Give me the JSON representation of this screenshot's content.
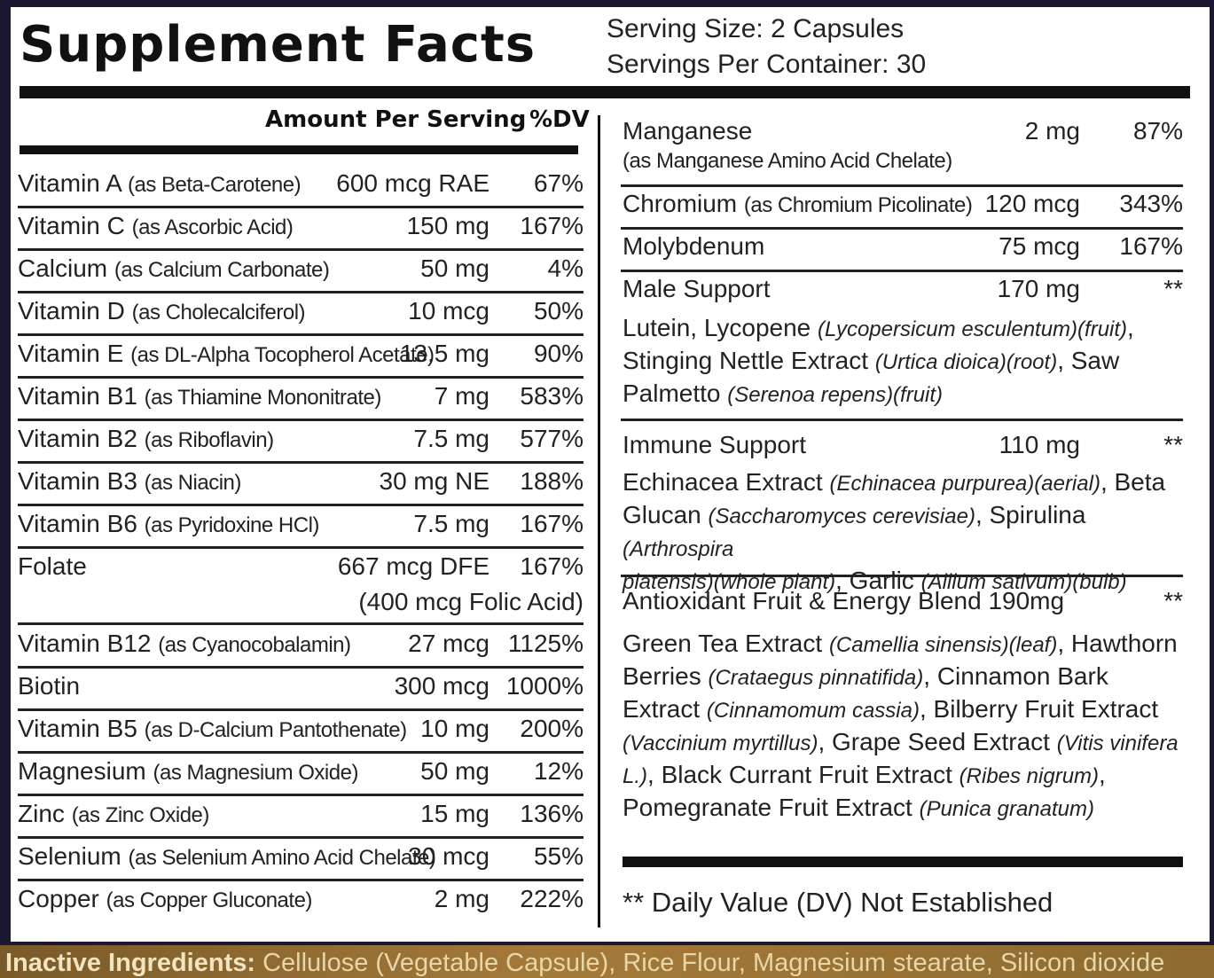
{
  "title": "Supplement Facts",
  "serving_size": "Serving Size: 2 Capsules",
  "servings_per_container": "Servings Per Container: 30",
  "header": {
    "amount": "Amount Per Serving",
    "dv": "%DV"
  },
  "left_rows": [
    {
      "name": "Vitamin A",
      "source": "(as Beta-Carotene)",
      "amount": "600 mcg RAE",
      "dv": "67%"
    },
    {
      "name": "Vitamin C",
      "source": "(as Ascorbic Acid)",
      "amount": "150 mg",
      "dv": "167%"
    },
    {
      "name": "Calcium",
      "source": "(as Calcium Carbonate)",
      "amount": "50 mg",
      "dv": "4%"
    },
    {
      "name": "Vitamin D",
      "source": "(as Cholecalciferol)",
      "amount": "10 mcg",
      "dv": "50%"
    },
    {
      "name": "Vitamin E",
      "source": "(as DL-Alpha Tocopherol Acetate)",
      "amount": "13.5 mg",
      "dv": "90%"
    },
    {
      "name": "Vitamin B1",
      "source": "(as Thiamine Mononitrate)",
      "amount": "7 mg",
      "dv": "583%"
    },
    {
      "name": "Vitamin B2",
      "source": "(as Riboflavin)",
      "amount": "7.5 mg",
      "dv": "577%"
    },
    {
      "name": "Vitamin B3",
      "source": "(as Niacin)",
      "amount": "30 mg NE",
      "dv": "188%"
    },
    {
      "name": "Vitamin B6",
      "source": "(as Pyridoxine HCl)",
      "amount": "7.5 mg",
      "dv": "167%"
    },
    {
      "name": "Folate",
      "source": "",
      "amount": "667 mcg DFE",
      "amount2": "(400 mcg Folic Acid)",
      "dv": "167%"
    },
    {
      "name": "Vitamin B12",
      "source": "(as Cyanocobalamin)",
      "amount": "27 mcg",
      "dv": "1125%"
    },
    {
      "name": "Biotin",
      "source": "",
      "amount": "300 mcg",
      "dv": "1000%"
    },
    {
      "name": "Vitamin B5",
      "source": "(as D-Calcium Pantothenate)",
      "amount": "10 mg",
      "dv": "200%"
    },
    {
      "name": "Magnesium",
      "source": "(as Magnesium Oxide)",
      "amount": "50 mg",
      "dv": "12%"
    },
    {
      "name": "Zinc",
      "source": "(as Zinc Oxide)",
      "amount": "15 mg",
      "dv": "136%"
    },
    {
      "name": "Selenium",
      "source": "(as Selenium Amino Acid Chelate)",
      "amount": "30 mcg",
      "dv": "55%"
    },
    {
      "name": "Copper",
      "source": "(as Copper Gluconate)",
      "amount": "2 mg",
      "dv": "222%"
    }
  ],
  "right_rows": {
    "manganese": {
      "name": "Manganese",
      "source": "(as Manganese Amino Acid Chelate)",
      "amount": "2 mg",
      "dv": "87%"
    },
    "chromium": {
      "name": "Chromium",
      "source": "(as Chromium Picolinate)",
      "amount": "120 mcg",
      "dv": "343%"
    },
    "molybdenum": {
      "name": "Molybdenum",
      "amount": "75 mcg",
      "dv": "167%"
    },
    "male": {
      "name": "Male Support",
      "amount": "170 mg",
      "dv": "**"
    },
    "immune": {
      "name": "Immune Support",
      "amount": "110 mg",
      "dv": "**"
    },
    "antioxidant": {
      "name": "Antioxidant Fruit & Energy Blend 190mg",
      "dv": "**"
    }
  },
  "male_blend": [
    {
      "t": "Lutein, Lycopene ",
      "i": "(Lycopersicum esculentum)(fruit)",
      "after": ","
    },
    {
      "t": "Stinging Nettle Extract ",
      "i": "(Urtica dioica)(root)",
      "after": ", Saw"
    },
    {
      "t": "Palmetto ",
      "i": "(Serenoa repens)(fruit)",
      "after": ""
    }
  ],
  "immune_blend": [
    {
      "t": "Echinacea Extract ",
      "i": "(Echinacea purpurea)(aerial)",
      "after": ", Beta"
    },
    {
      "t": "Glucan ",
      "i": "(Saccharomyces cerevisiae)",
      "after": ", Spirulina ",
      "i2": "(Arthrospira"
    },
    {
      "t": "",
      "i": "platensis)(whole plant)",
      "after": ", Garlic ",
      "i2": "(Allium sativum)(bulb)"
    }
  ],
  "antioxidant_blend": [
    {
      "t": "Green Tea Extract ",
      "i": "(Camellia sinensis)(leaf)",
      "after": ", Hawthorn"
    },
    {
      "t": "Berries ",
      "i": "(Crataegus pinnatifida)",
      "after": ", Cinnamon Bark"
    },
    {
      "t": "Extract ",
      "i": "(Cinnamomum cassia)",
      "after": ", Bilberry Fruit Extract"
    },
    {
      "t": "",
      "i": "(Vaccinium myrtillus)",
      "after": ", Grape Seed Extract ",
      "i2": "(Vitis vinifera"
    },
    {
      "t": "",
      "i": "L.)",
      "after": ", Black Currant Fruit Extract ",
      "i2": "(Ribes nigrum)",
      "after2": ","
    },
    {
      "t": "Pomegranate Fruit Extract ",
      "i": "(Punica granatum)",
      "after": ""
    }
  ],
  "footnote": "** Daily Value (DV) Not Established",
  "inactive": {
    "label": "Inactive Ingredients:",
    "text": " Cellulose (Vegetable Capsule), Rice Flour, Magnesium stearate, Silicon dioxide"
  }
}
